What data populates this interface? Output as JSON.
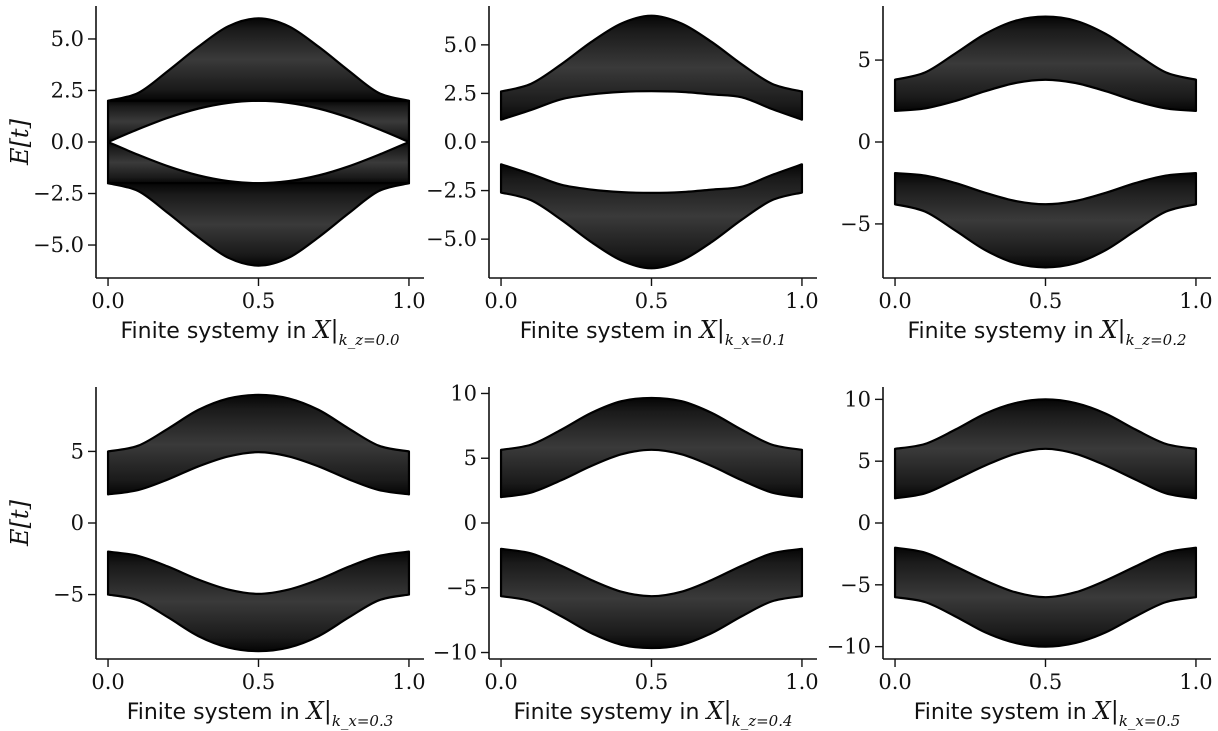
{
  "chart_data": [
    {
      "type": "area",
      "xlabel": "Finite systemy in",
      "xlabel_var": "X",
      "xlabel_sub": "k_z=0.0",
      "ylabel": "E[t]",
      "xlim": [
        -0.04,
        1.05
      ],
      "ylim": [
        -6.6,
        6.6
      ],
      "xticks": [
        0.0,
        0.5,
        1.0
      ],
      "xtick_labels": [
        "0.0",
        "0.5",
        "1.0"
      ],
      "yticks": [
        -5.0,
        -2.5,
        0.0,
        2.5,
        5.0
      ],
      "ytick_labels": [
        "−5.0",
        "−2.5",
        "0.0",
        "2.5",
        "5.0"
      ],
      "grid": false,
      "series": [
        {
          "x": [
            0,
            0.1,
            0.2,
            0.3,
            0.4,
            0.5,
            0.6,
            0.7,
            0.8,
            0.9,
            1.0
          ],
          "lower": [
            2.0,
            2.0,
            2.0,
            2.0,
            2.0,
            2.0,
            2.0,
            2.0,
            2.0,
            2.0,
            2.0
          ],
          "upper": [
            2.0,
            2.38,
            3.46,
            4.62,
            5.62,
            6.0,
            5.62,
            4.62,
            3.46,
            2.38,
            2.0
          ]
        },
        {
          "x": [
            0,
            0.1,
            0.2,
            0.3,
            0.4,
            0.5,
            0.6,
            0.7,
            0.8,
            0.9,
            1.0
          ],
          "lower": [
            0.0,
            0.62,
            1.18,
            1.62,
            1.9,
            2.0,
            1.9,
            1.62,
            1.18,
            0.62,
            0.0
          ],
          "upper": [
            2.0,
            2.0,
            2.0,
            2.0,
            2.0,
            2.0,
            2.0,
            2.0,
            2.0,
            2.0,
            2.0
          ]
        },
        {
          "x": [
            0,
            0.1,
            0.2,
            0.3,
            0.4,
            0.5,
            0.6,
            0.7,
            0.8,
            0.9,
            1.0
          ],
          "lower": [
            -2.0,
            -2.0,
            -2.0,
            -2.0,
            -2.0,
            -2.0,
            -2.0,
            -2.0,
            -2.0,
            -2.0,
            -2.0
          ],
          "upper": [
            0.0,
            -0.62,
            -1.18,
            -1.62,
            -1.9,
            -2.0,
            -1.9,
            -1.62,
            -1.18,
            -0.62,
            0.0
          ]
        },
        {
          "x": [
            0,
            0.1,
            0.2,
            0.3,
            0.4,
            0.5,
            0.6,
            0.7,
            0.8,
            0.9,
            1.0
          ],
          "lower": [
            -2.0,
            -2.38,
            -3.46,
            -4.62,
            -5.62,
            -6.0,
            -5.62,
            -4.62,
            -3.46,
            -2.38,
            -2.0
          ],
          "upper": [
            -2.0,
            -2.0,
            -2.0,
            -2.0,
            -2.0,
            -2.0,
            -2.0,
            -2.0,
            -2.0,
            -2.0,
            -2.0
          ]
        }
      ]
    },
    {
      "type": "area",
      "xlabel": "Finite system in",
      "xlabel_var": "X",
      "xlabel_sub": "k_x=0.1",
      "ylabel": "",
      "xlim": [
        -0.04,
        1.05
      ],
      "ylim": [
        -7.0,
        7.0
      ],
      "xticks": [
        0.0,
        0.5,
        1.0
      ],
      "xtick_labels": [
        "0.0",
        "0.5",
        "1.0"
      ],
      "yticks": [
        -5.0,
        -2.5,
        0.0,
        2.5,
        5.0
      ],
      "ytick_labels": [
        "−5.0",
        "−2.5",
        "0.0",
        "2.5",
        "5.0"
      ],
      "grid": false,
      "series": [
        {
          "x": [
            0,
            0.1,
            0.2,
            0.3,
            0.4,
            0.5,
            0.6,
            0.7,
            0.8,
            0.9,
            1.0
          ],
          "lower": [
            1.15,
            1.65,
            2.2,
            2.45,
            2.58,
            2.62,
            2.58,
            2.45,
            2.3,
            1.7,
            1.15
          ],
          "upper": [
            2.6,
            3.0,
            4.0,
            5.15,
            6.1,
            6.5,
            6.1,
            5.15,
            4.0,
            3.0,
            2.6
          ]
        },
        {
          "x": [
            0,
            0.1,
            0.2,
            0.3,
            0.4,
            0.5,
            0.6,
            0.7,
            0.8,
            0.9,
            1.0
          ],
          "lower": [
            -2.6,
            -3.0,
            -4.0,
            -5.15,
            -6.1,
            -6.5,
            -6.1,
            -5.15,
            -4.0,
            -3.0,
            -2.6
          ],
          "upper": [
            -1.15,
            -1.65,
            -2.2,
            -2.45,
            -2.58,
            -2.62,
            -2.58,
            -2.45,
            -2.3,
            -1.7,
            -1.15
          ]
        }
      ]
    },
    {
      "type": "area",
      "xlabel": "Finite systemy in",
      "xlabel_var": "X",
      "xlabel_sub": "k_z=0.2",
      "ylabel": "",
      "xlim": [
        -0.04,
        1.05
      ],
      "ylim": [
        -8.3,
        8.3
      ],
      "xticks": [
        0.0,
        0.5,
        1.0
      ],
      "xtick_labels": [
        "0.0",
        "0.5",
        "1.0"
      ],
      "yticks": [
        -5,
        0,
        5
      ],
      "ytick_labels": [
        "−5",
        "0",
        "5"
      ],
      "grid": false,
      "series": [
        {
          "x": [
            0,
            0.1,
            0.2,
            0.3,
            0.4,
            0.5,
            0.6,
            0.7,
            0.8,
            0.9,
            1.0
          ],
          "lower": [
            1.9,
            2.05,
            2.5,
            3.1,
            3.6,
            3.8,
            3.6,
            3.1,
            2.5,
            2.05,
            1.9
          ],
          "upper": [
            3.8,
            4.25,
            5.4,
            6.6,
            7.4,
            7.65,
            7.4,
            6.6,
            5.4,
            4.25,
            3.8
          ]
        },
        {
          "x": [
            0,
            0.1,
            0.2,
            0.3,
            0.4,
            0.5,
            0.6,
            0.7,
            0.8,
            0.9,
            1.0
          ],
          "lower": [
            -3.8,
            -4.25,
            -5.4,
            -6.6,
            -7.4,
            -7.65,
            -7.4,
            -6.6,
            -5.4,
            -4.25,
            -3.8
          ],
          "upper": [
            -1.9,
            -2.05,
            -2.5,
            -3.1,
            -3.6,
            -3.8,
            -3.6,
            -3.1,
            -2.5,
            -2.05,
            -1.9
          ]
        }
      ]
    },
    {
      "type": "area",
      "xlabel": "Finite system in",
      "xlabel_var": "X",
      "xlabel_sub": "k_x=0.3",
      "ylabel": "E[t]",
      "xlim": [
        -0.04,
        1.05
      ],
      "ylim": [
        -9.5,
        9.5
      ],
      "xticks": [
        0.0,
        0.5,
        1.0
      ],
      "xtick_labels": [
        "0.0",
        "0.5",
        "1.0"
      ],
      "yticks": [
        -5,
        0,
        5
      ],
      "ytick_labels": [
        "−5",
        "0",
        "5"
      ],
      "grid": false,
      "series": [
        {
          "x": [
            0,
            0.1,
            0.2,
            0.3,
            0.4,
            0.5,
            0.6,
            0.7,
            0.8,
            0.9,
            1.0
          ],
          "lower": [
            2.0,
            2.3,
            3.05,
            3.95,
            4.65,
            4.95,
            4.65,
            3.95,
            3.05,
            2.3,
            2.0
          ],
          "upper": [
            5.0,
            5.4,
            6.6,
            7.9,
            8.7,
            8.95,
            8.7,
            7.9,
            6.6,
            5.4,
            5.0
          ]
        },
        {
          "x": [
            0,
            0.1,
            0.2,
            0.3,
            0.4,
            0.5,
            0.6,
            0.7,
            0.8,
            0.9,
            1.0
          ],
          "lower": [
            -5.0,
            -5.4,
            -6.6,
            -7.9,
            -8.7,
            -8.95,
            -8.7,
            -7.9,
            -6.6,
            -5.4,
            -5.0
          ],
          "upper": [
            -2.0,
            -2.3,
            -3.05,
            -3.95,
            -4.65,
            -4.95,
            -4.65,
            -3.95,
            -3.05,
            -2.3,
            -2.0
          ]
        }
      ]
    },
    {
      "type": "area",
      "xlabel": "Finite systemy in",
      "xlabel_var": "X",
      "xlabel_sub": "k_z=0.4",
      "ylabel": "",
      "xlim": [
        -0.04,
        1.05
      ],
      "ylim": [
        -10.5,
        10.5
      ],
      "xticks": [
        0.0,
        0.5,
        1.0
      ],
      "xtick_labels": [
        "0.0",
        "0.5",
        "1.0"
      ],
      "yticks": [
        -10,
        -5,
        0,
        5,
        10
      ],
      "ytick_labels": [
        "−10",
        "−5",
        "0",
        "5",
        "10"
      ],
      "grid": false,
      "series": [
        {
          "x": [
            0,
            0.1,
            0.2,
            0.3,
            0.4,
            0.5,
            0.6,
            0.7,
            0.8,
            0.9,
            1.0
          ],
          "lower": [
            2.0,
            2.35,
            3.3,
            4.4,
            5.3,
            5.65,
            5.3,
            4.4,
            3.3,
            2.35,
            2.0
          ],
          "upper": [
            5.65,
            6.05,
            7.2,
            8.5,
            9.4,
            9.65,
            9.4,
            8.5,
            7.2,
            6.05,
            5.65
          ]
        },
        {
          "x": [
            0,
            0.1,
            0.2,
            0.3,
            0.4,
            0.5,
            0.6,
            0.7,
            0.8,
            0.9,
            1.0
          ],
          "lower": [
            -5.65,
            -6.05,
            -7.2,
            -8.5,
            -9.4,
            -9.65,
            -9.4,
            -8.5,
            -7.2,
            -6.05,
            -5.65
          ],
          "upper": [
            -2.0,
            -2.35,
            -3.3,
            -4.4,
            -5.3,
            -5.65,
            -5.3,
            -4.4,
            -3.3,
            -2.35,
            -2.0
          ]
        }
      ]
    },
    {
      "type": "area",
      "xlabel": "Finite system in",
      "xlabel_var": "X",
      "xlabel_sub": "k_x=0.5",
      "ylabel": "",
      "xlim": [
        -0.04,
        1.05
      ],
      "ylim": [
        -11.0,
        11.0
      ],
      "xticks": [
        0.0,
        0.5,
        1.0
      ],
      "xtick_labels": [
        "0.0",
        "0.5",
        "1.0"
      ],
      "yticks": [
        -10,
        -5,
        0,
        5,
        10
      ],
      "ytick_labels": [
        "−10",
        "−5",
        "0",
        "5",
        "10"
      ],
      "grid": false,
      "series": [
        {
          "x": [
            0,
            0.1,
            0.2,
            0.3,
            0.4,
            0.5,
            0.6,
            0.7,
            0.8,
            0.9,
            1.0
          ],
          "lower": [
            2.0,
            2.4,
            3.5,
            4.65,
            5.6,
            6.0,
            5.6,
            4.65,
            3.5,
            2.4,
            2.0
          ],
          "upper": [
            6.0,
            6.4,
            7.55,
            8.85,
            9.7,
            10.0,
            9.7,
            8.85,
            7.55,
            6.4,
            6.0
          ]
        },
        {
          "x": [
            0,
            0.1,
            0.2,
            0.3,
            0.4,
            0.5,
            0.6,
            0.7,
            0.8,
            0.9,
            1.0
          ],
          "lower": [
            -6.0,
            -6.4,
            -7.55,
            -8.85,
            -9.7,
            -10.0,
            -9.7,
            -8.85,
            -7.55,
            -6.4,
            -6.0
          ],
          "upper": [
            -2.0,
            -2.4,
            -3.5,
            -4.65,
            -5.6,
            -6.0,
            -5.6,
            -4.65,
            -3.5,
            -2.4,
            -2.0
          ]
        }
      ]
    }
  ]
}
